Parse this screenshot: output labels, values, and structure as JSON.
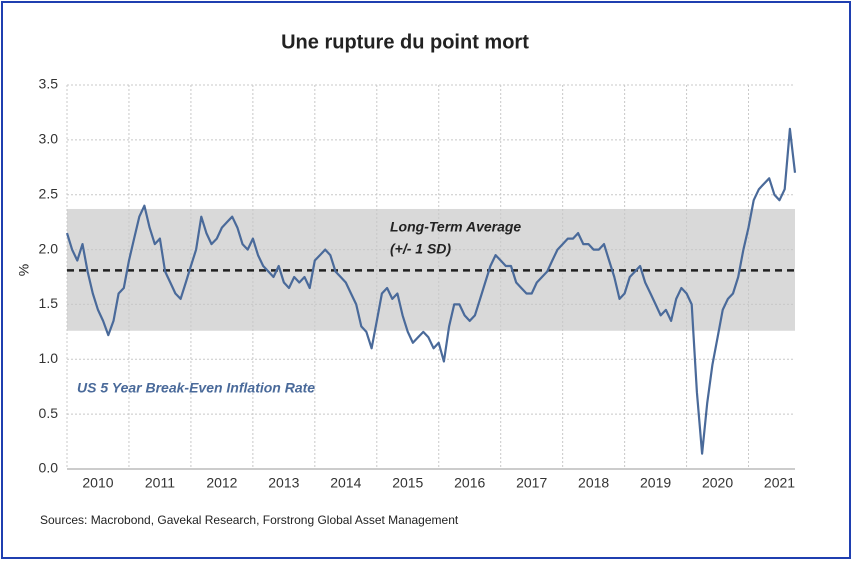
{
  "chart_data": {
    "type": "line",
    "title": "Une rupture du point mort",
    "y_label": "%",
    "source": "Sources: Macrobond, Gavekal Research, Forstrong Global Asset Management",
    "band_label": "Long-Term Average",
    "band_sublabel": "(+/- 1 SD)",
    "band": [
      1.26,
      2.37
    ],
    "average": 1.81,
    "xlim": [
      2010,
      2021.75
    ],
    "xticks": [
      2010,
      2011,
      2012,
      2013,
      2014,
      2015,
      2016,
      2017,
      2018,
      2019,
      2020,
      2021
    ],
    "ylim": [
      0,
      3.5
    ],
    "yticks": [
      {
        "value": 0,
        "label": "0.0"
      },
      {
        "value": 0.5,
        "label": "0.5"
      },
      {
        "value": 1,
        "label": "1.0"
      },
      {
        "value": 1.5,
        "label": "1.5"
      },
      {
        "value": 2,
        "label": "2.0"
      },
      {
        "value": 2.5,
        "label": "2.5"
      },
      {
        "value": 3,
        "label": "3.0"
      },
      {
        "value": 3.5,
        "label": "3.5"
      }
    ],
    "grid": true,
    "x": [
      2010,
      2010.083,
      2010.167,
      2010.25,
      2010.333,
      2010.417,
      2010.5,
      2010.583,
      2010.667,
      2010.75,
      2010.833,
      2010.917,
      2011,
      2011.083,
      2011.167,
      2011.25,
      2011.333,
      2011.417,
      2011.5,
      2011.583,
      2011.667,
      2011.75,
      2011.833,
      2011.917,
      2012,
      2012.083,
      2012.167,
      2012.25,
      2012.333,
      2012.417,
      2012.5,
      2012.583,
      2012.667,
      2012.75,
      2012.833,
      2012.917,
      2013,
      2013.083,
      2013.167,
      2013.25,
      2013.333,
      2013.417,
      2013.5,
      2013.583,
      2013.667,
      2013.75,
      2013.833,
      2013.917,
      2014,
      2014.083,
      2014.167,
      2014.25,
      2014.333,
      2014.417,
      2014.5,
      2014.583,
      2014.667,
      2014.75,
      2014.833,
      2014.917,
      2015,
      2015.083,
      2015.167,
      2015.25,
      2015.333,
      2015.417,
      2015.5,
      2015.583,
      2015.667,
      2015.75,
      2015.833,
      2015.917,
      2016,
      2016.083,
      2016.167,
      2016.25,
      2016.333,
      2016.417,
      2016.5,
      2016.583,
      2016.667,
      2016.75,
      2016.833,
      2016.917,
      2017,
      2017.083,
      2017.167,
      2017.25,
      2017.333,
      2017.417,
      2017.5,
      2017.583,
      2017.667,
      2017.75,
      2017.833,
      2017.917,
      2018,
      2018.083,
      2018.167,
      2018.25,
      2018.333,
      2018.417,
      2018.5,
      2018.583,
      2018.667,
      2018.75,
      2018.833,
      2018.917,
      2019,
      2019.083,
      2019.167,
      2019.25,
      2019.333,
      2019.417,
      2019.5,
      2019.583,
      2019.667,
      2019.75,
      2019.833,
      2019.917,
      2020,
      2020.083,
      2020.167,
      2020.25,
      2020.333,
      2020.417,
      2020.5,
      2020.583,
      2020.667,
      2020.75,
      2020.833,
      2020.917,
      2021,
      2021.083,
      2021.167,
      2021.25,
      2021.333,
      2021.417,
      2021.5,
      2021.583,
      2021.667,
      2021.75
    ],
    "series": [
      {
        "name": "US 5 Year Break-Even Inflation Rate",
        "color": "#4a6a9a",
        "values": [
          2.15,
          2.0,
          1.9,
          2.05,
          1.8,
          1.6,
          1.45,
          1.35,
          1.22,
          1.35,
          1.6,
          1.65,
          1.9,
          2.1,
          2.3,
          2.4,
          2.2,
          2.05,
          2.1,
          1.8,
          1.7,
          1.6,
          1.55,
          1.7,
          1.85,
          2.0,
          2.3,
          2.15,
          2.05,
          2.1,
          2.2,
          2.25,
          2.3,
          2.2,
          2.05,
          2.0,
          2.1,
          1.95,
          1.85,
          1.8,
          1.75,
          1.85,
          1.7,
          1.65,
          1.75,
          1.7,
          1.75,
          1.65,
          1.9,
          1.95,
          2.0,
          1.95,
          1.8,
          1.75,
          1.7,
          1.6,
          1.5,
          1.3,
          1.25,
          1.1,
          1.35,
          1.6,
          1.65,
          1.55,
          1.6,
          1.4,
          1.25,
          1.15,
          1.2,
          1.25,
          1.2,
          1.1,
          1.15,
          0.98,
          1.3,
          1.5,
          1.5,
          1.4,
          1.35,
          1.4,
          1.55,
          1.7,
          1.85,
          1.95,
          1.9,
          1.85,
          1.85,
          1.7,
          1.65,
          1.6,
          1.6,
          1.7,
          1.75,
          1.8,
          1.9,
          2.0,
          2.05,
          2.1,
          2.1,
          2.15,
          2.05,
          2.05,
          2.0,
          2.0,
          2.05,
          1.9,
          1.75,
          1.55,
          1.6,
          1.75,
          1.8,
          1.85,
          1.7,
          1.6,
          1.5,
          1.4,
          1.45,
          1.35,
          1.55,
          1.65,
          1.6,
          1.5,
          0.7,
          0.14,
          0.6,
          0.95,
          1.2,
          1.45,
          1.55,
          1.6,
          1.75,
          2.0,
          2.2,
          2.45,
          2.55,
          2.6,
          2.65,
          2.5,
          2.45,
          2.55,
          3.1,
          2.7
        ]
      }
    ]
  }
}
